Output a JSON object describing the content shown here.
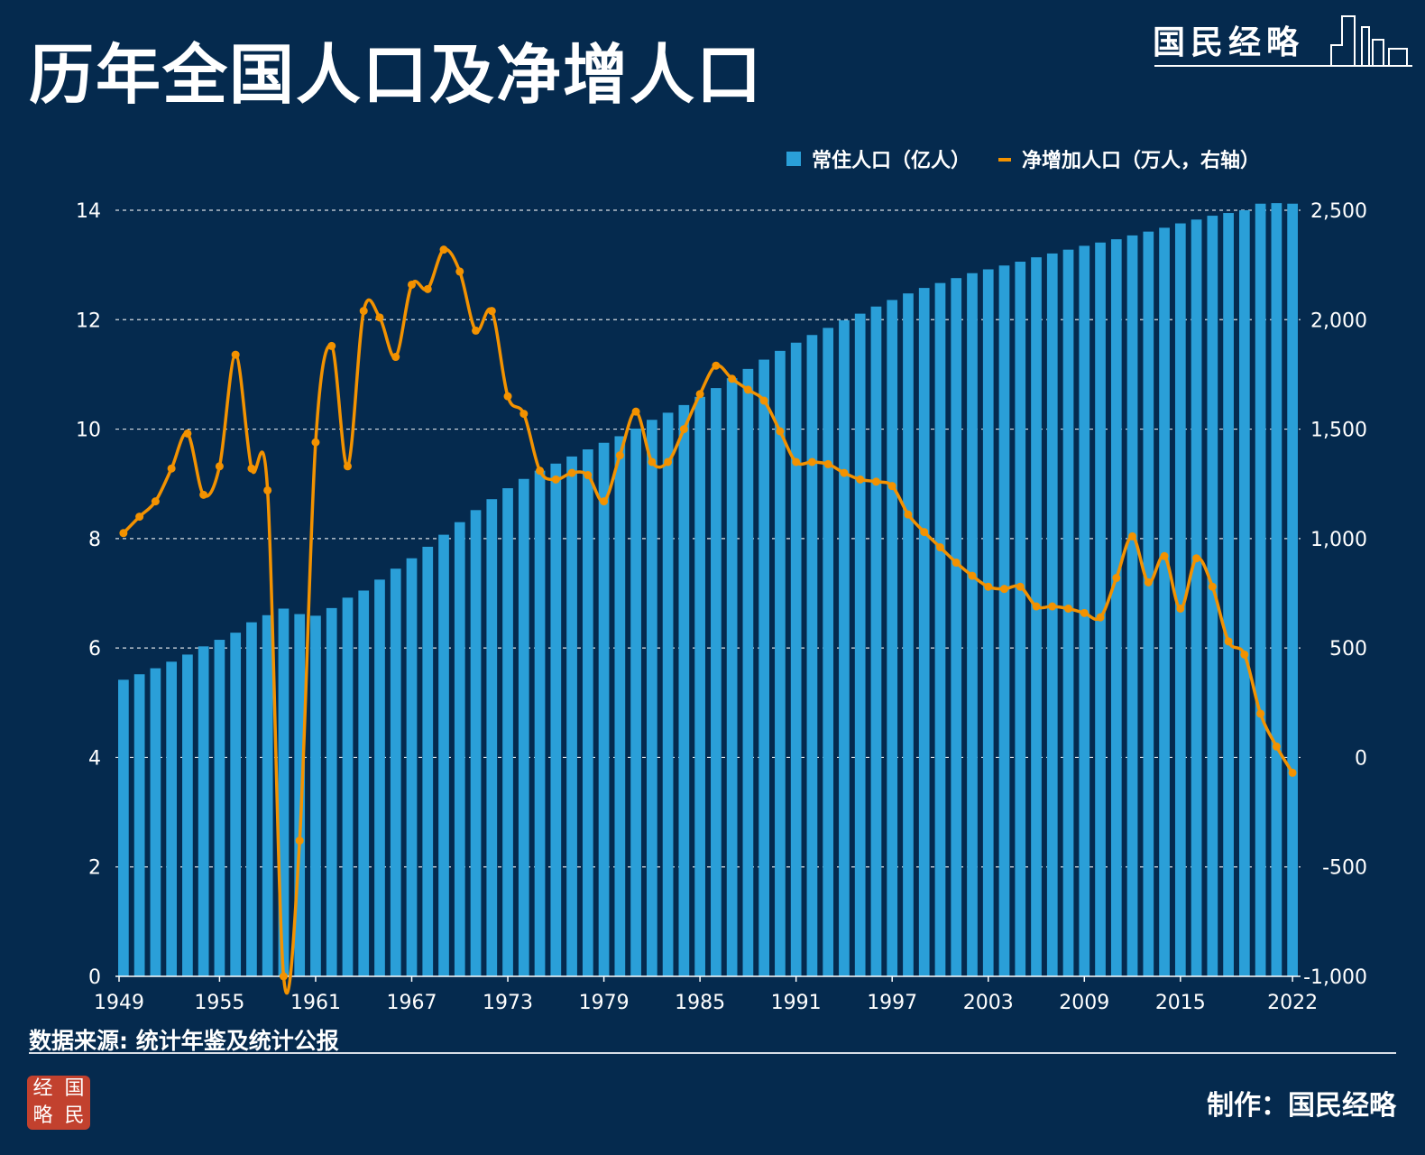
{
  "header": {
    "title": "历年全国人口及净增人口"
  },
  "brand": {
    "name": "国民经略"
  },
  "footer": {
    "source": "数据来源: 统计年鉴及统计公报",
    "credit": "制作：国民经略",
    "seal_chars": [
      "经",
      "国",
      "略",
      "民"
    ]
  },
  "colors": {
    "background": "#052a4e",
    "bar": "#2a9fd8",
    "line": "#f39200",
    "text": "#ffffff"
  },
  "chart_data": {
    "type": "bar+line",
    "x_start": 1949,
    "x_end": 2022,
    "x_ticks": [
      "1949",
      "1955",
      "1961",
      "1967",
      "1973",
      "1979",
      "1985",
      "1991",
      "1997",
      "2003",
      "2009",
      "2015",
      "2022"
    ],
    "y_left": {
      "range": [
        0,
        14
      ],
      "ticks": [
        "0",
        "2",
        "4",
        "6",
        "8",
        "10",
        "12",
        "14"
      ]
    },
    "y_right": {
      "range": [
        -1000,
        2500
      ],
      "ticks": [
        "-1,000",
        "-500",
        "0",
        "500",
        "1,000",
        "1,500",
        "2,000",
        "2,500"
      ]
    },
    "grid": "horizontal-dashed",
    "legend": {
      "position": "top-right",
      "items": [
        "常住人口（亿人）",
        "净增加人口（万人，右轴）"
      ]
    },
    "series": [
      {
        "name": "常住人口（亿人）",
        "type": "bar",
        "axis": "left",
        "values": [
          5.42,
          5.52,
          5.63,
          5.75,
          5.88,
          6.03,
          6.15,
          6.28,
          6.47,
          6.6,
          6.72,
          6.62,
          6.59,
          6.73,
          6.92,
          7.05,
          7.25,
          7.45,
          7.64,
          7.85,
          8.07,
          8.3,
          8.52,
          8.72,
          8.92,
          9.09,
          9.24,
          9.37,
          9.5,
          9.63,
          9.75,
          9.87,
          10.01,
          10.17,
          10.3,
          10.44,
          10.59,
          10.75,
          10.93,
          11.1,
          11.27,
          11.43,
          11.58,
          11.72,
          11.85,
          11.99,
          12.11,
          12.24,
          12.36,
          12.48,
          12.58,
          12.67,
          12.76,
          12.85,
          12.92,
          12.99,
          13.06,
          13.14,
          13.21,
          13.28,
          13.35,
          13.41,
          13.47,
          13.54,
          13.61,
          13.68,
          13.76,
          13.83,
          13.9,
          13.95,
          14.0,
          14.12,
          14.13,
          14.12
        ]
      },
      {
        "name": "净增加人口（万人，右轴）",
        "type": "line",
        "axis": "right",
        "values": [
          1025,
          1100,
          1170,
          1320,
          1480,
          1200,
          1330,
          1840,
          1320,
          1220,
          -1000,
          -380,
          1440,
          1880,
          1330,
          2040,
          2010,
          1830,
          2160,
          2140,
          2320,
          2220,
          1950,
          2040,
          1650,
          1570,
          1310,
          1270,
          1300,
          1290,
          1170,
          1380,
          1580,
          1350,
          1350,
          1500,
          1660,
          1790,
          1730,
          1680,
          1630,
          1490,
          1350,
          1350,
          1340,
          1300,
          1270,
          1260,
          1240,
          1110,
          1030,
          960,
          890,
          830,
          780,
          770,
          780,
          690,
          690,
          680,
          660,
          640,
          820,
          1010,
          800,
          920,
          680,
          910,
          780,
          530,
          470,
          200,
          50,
          -70
        ]
      }
    ]
  }
}
